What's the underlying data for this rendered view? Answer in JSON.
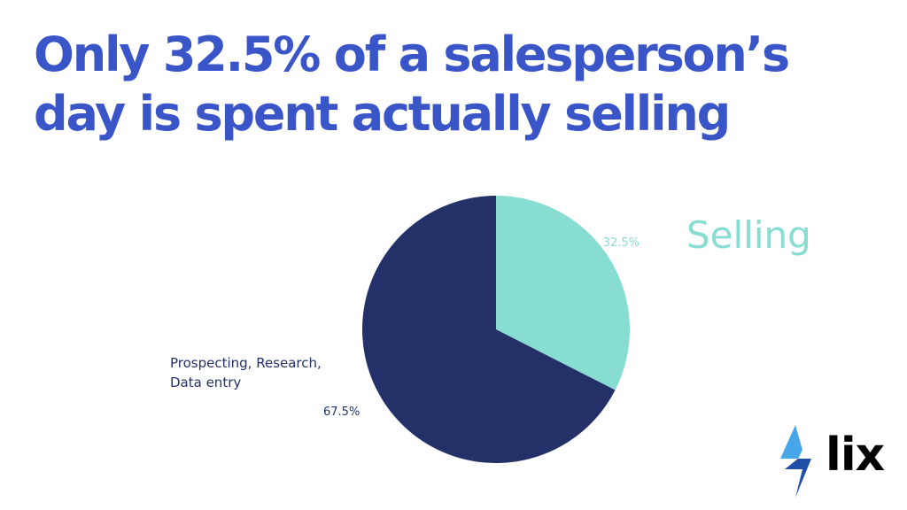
{
  "title": {
    "line1": "Only 32.5% of a salesperson’s",
    "line2": "day is spent actually selling"
  },
  "colors": {
    "title": "#3a55c8",
    "selling": "#88ddd3",
    "other": "#233168",
    "logo_bolt_light": "#47a6e8",
    "logo_bolt_dark": "#1f4fa6"
  },
  "logo": {
    "text": "lix",
    "icon": "lightning-bolt-icon"
  },
  "chart_data": {
    "type": "pie",
    "start": "12 o'clock, clockwise",
    "slices": [
      {
        "label": "Selling",
        "value": 32.5,
        "value_label": "32.5%",
        "color": "#88ddd3"
      },
      {
        "label": "Prospecting, Research, Data entry",
        "label_lines": [
          "Prospecting, Research,",
          "Data entry"
        ],
        "value": 67.5,
        "value_label": "67.5%",
        "color": "#233168"
      }
    ]
  }
}
